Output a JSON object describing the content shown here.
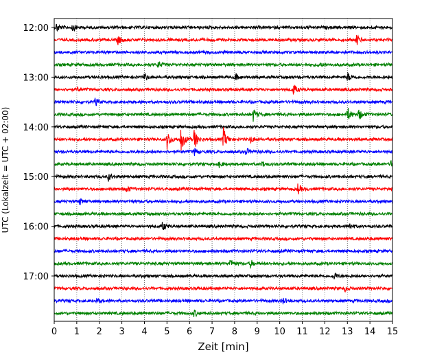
{
  "chart_data": {
    "type": "line",
    "title": "",
    "xlabel": "Zeit  [min]",
    "ylabel": "UTC (Lokalzeit = UTC + 02:00)",
    "xlim": [
      0,
      15
    ],
    "x_ticks": [
      "0",
      "1",
      "2",
      "3",
      "4",
      "5",
      "6",
      "7",
      "8",
      "9",
      "10",
      "11",
      "12",
      "13",
      "14",
      "15"
    ],
    "row_minutes": 15,
    "start_time": "12:00",
    "y_ticks": [
      {
        "label": "12:00",
        "row": 0
      },
      {
        "label": "13:00",
        "row": 4
      },
      {
        "label": "14:00",
        "row": 8
      },
      {
        "label": "15:00",
        "row": 12
      },
      {
        "label": "16:00",
        "row": 16
      },
      {
        "label": "17:00",
        "row": 20
      }
    ],
    "trace_colors": [
      "#000000",
      "#ff0000",
      "#0000ff",
      "#008000"
    ],
    "grid": {
      "x": true,
      "style": "dotted",
      "color": "#555555"
    },
    "events": [
      {
        "row": 0,
        "minute": 0.1,
        "amplitude": 0.35
      },
      {
        "row": 0,
        "minute": 0.8,
        "amplitude": 0.3
      },
      {
        "row": 1,
        "minute": 2.8,
        "amplitude": 0.45
      },
      {
        "row": 1,
        "minute": 13.4,
        "amplitude": 0.45
      },
      {
        "row": 3,
        "minute": 4.6,
        "amplitude": 0.3
      },
      {
        "row": 3,
        "minute": 11.7,
        "amplitude": 0.25
      },
      {
        "row": 4,
        "minute": 4.0,
        "amplitude": 0.3
      },
      {
        "row": 4,
        "minute": 8.0,
        "amplitude": 0.3
      },
      {
        "row": 4,
        "minute": 13.0,
        "amplitude": 0.35
      },
      {
        "row": 5,
        "minute": 1.0,
        "amplitude": 0.2
      },
      {
        "row": 5,
        "minute": 10.6,
        "amplitude": 0.45
      },
      {
        "row": 6,
        "minute": 1.8,
        "amplitude": 0.3
      },
      {
        "row": 7,
        "minute": 8.8,
        "amplitude": 0.6
      },
      {
        "row": 7,
        "minute": 13.0,
        "amplitude": 0.6
      },
      {
        "row": 7,
        "minute": 13.5,
        "amplitude": 0.5
      },
      {
        "row": 9,
        "minute": 5.0,
        "amplitude": 0.8
      },
      {
        "row": 9,
        "minute": 5.6,
        "amplitude": 1.2
      },
      {
        "row": 9,
        "minute": 6.2,
        "amplitude": 0.9
      },
      {
        "row": 9,
        "minute": 7.5,
        "amplitude": 0.9
      },
      {
        "row": 9,
        "minute": 8.7,
        "amplitude": 0.3
      },
      {
        "row": 10,
        "minute": 6.2,
        "amplitude": 0.3
      },
      {
        "row": 10,
        "minute": 8.5,
        "amplitude": 0.3
      },
      {
        "row": 11,
        "minute": 7.3,
        "amplitude": 0.25
      },
      {
        "row": 11,
        "minute": 9.2,
        "amplitude": 0.25
      },
      {
        "row": 11,
        "minute": 14.9,
        "amplitude": 0.25
      },
      {
        "row": 12,
        "minute": 2.4,
        "amplitude": 0.35
      },
      {
        "row": 13,
        "minute": 3.2,
        "amplitude": 0.3
      },
      {
        "row": 13,
        "minute": 10.8,
        "amplitude": 0.4
      },
      {
        "row": 14,
        "minute": 1.1,
        "amplitude": 0.3
      },
      {
        "row": 16,
        "minute": 4.8,
        "amplitude": 0.35
      },
      {
        "row": 16,
        "minute": 13.1,
        "amplitude": 0.25
      },
      {
        "row": 19,
        "minute": 7.8,
        "amplitude": 0.35
      },
      {
        "row": 19,
        "minute": 8.7,
        "amplitude": 0.3
      },
      {
        "row": 20,
        "minute": 12.4,
        "amplitude": 0.3
      },
      {
        "row": 21,
        "minute": 12.9,
        "amplitude": 0.2
      },
      {
        "row": 22,
        "minute": 10.1,
        "amplitude": 0.3
      },
      {
        "row": 22,
        "minute": 1.9,
        "amplitude": 0.2
      },
      {
        "row": 23,
        "minute": 6.2,
        "amplitude": 0.25
      }
    ]
  }
}
